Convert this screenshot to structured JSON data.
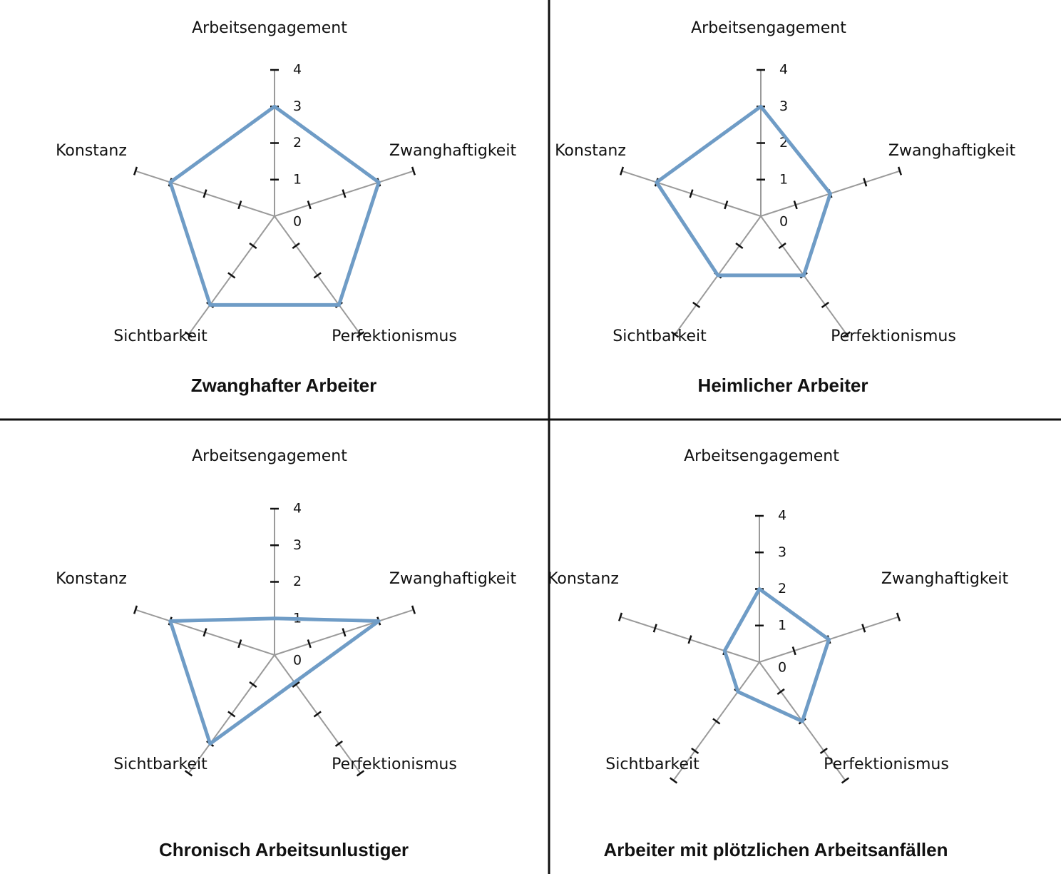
{
  "chart_data": [
    {
      "type": "radar",
      "title": "Zwanghafter Arbeiter",
      "categories": [
        "Arbeitsengagement",
        "Zwanghaftigkeit",
        "Perfektionismus",
        "Sichtbarkeit",
        "Konstanz"
      ],
      "values": [
        3,
        3,
        3,
        3,
        3
      ],
      "color": "#6f9cc6",
      "rlim": [
        0,
        4
      ],
      "rticks": [
        0,
        1,
        2,
        3,
        4
      ]
    },
    {
      "type": "radar",
      "title": "Heimlicher Arbeiter",
      "categories": [
        "Arbeitsengagement",
        "Zwanghaftigkeit",
        "Perfektionismus",
        "Sichtbarkeit",
        "Konstanz"
      ],
      "values": [
        3,
        2,
        2,
        2,
        3
      ],
      "color": "#6f9cc6",
      "rlim": [
        0,
        4
      ],
      "rticks": [
        0,
        1,
        2,
        3,
        4
      ]
    },
    {
      "type": "radar",
      "title": "Chronisch Arbeitsunlustiger",
      "categories": [
        "Arbeitsengagement",
        "Zwanghaftigkeit",
        "Perfektionismus",
        "Sichtbarkeit",
        "Konstanz"
      ],
      "values": [
        1,
        3,
        null,
        3,
        3
      ],
      "color": "#6f9cc6",
      "rlim": [
        0,
        4
      ],
      "rticks": [
        0,
        1,
        2,
        3,
        4
      ]
    },
    {
      "type": "radar",
      "title": "Arbeiter mit plötzlichen Arbeitsanfällen",
      "categories": [
        "Arbeitsengagement",
        "Zwanghaftigkeit",
        "Perfektionismus",
        "Sichtbarkeit",
        "Konstanz"
      ],
      "values": [
        2,
        2,
        2,
        1,
        1
      ],
      "color": "#6f9cc6",
      "rlim": [
        0,
        4
      ],
      "rticks": [
        0,
        1,
        2,
        3,
        4
      ]
    }
  ]
}
